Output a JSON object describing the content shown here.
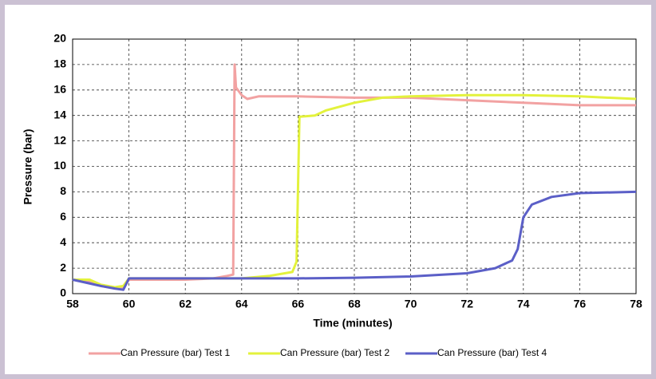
{
  "chart_data": {
    "type": "line",
    "xlabel": "Time (minutes)",
    "ylabel": "Pressure (bar)",
    "xlim": [
      58,
      78
    ],
    "xticks": [
      58,
      60,
      62,
      64,
      66,
      68,
      70,
      72,
      74,
      76,
      78
    ],
    "ylim": [
      0,
      20
    ],
    "yticks": [
      0,
      2,
      4,
      6,
      8,
      10,
      12,
      14,
      16,
      18,
      20
    ],
    "grid": true,
    "legend": "bottom",
    "series": [
      {
        "name": "Can Pressure (bar) Test 1",
        "color": "#f2a2a2",
        "x": [
          58,
          58.5,
          59,
          59.5,
          59.8,
          60,
          62,
          63,
          63.5,
          63.7,
          63.75,
          63.8,
          64,
          64.2,
          64.6,
          66,
          68,
          70,
          72,
          74,
          76,
          78
        ],
        "values": [
          1.1,
          1.0,
          0.6,
          0.4,
          0.4,
          1.1,
          1.1,
          1.2,
          1.4,
          1.5,
          18,
          16.2,
          15.6,
          15.3,
          15.5,
          15.5,
          15.4,
          15.4,
          15.2,
          15.0,
          14.8,
          14.8
        ]
      },
      {
        "name": "Can Pressure (bar) Test 2",
        "color": "#e3f23c",
        "x": [
          58,
          58.6,
          59,
          59.5,
          59.8,
          60,
          64,
          65,
          65.8,
          65.95,
          66.05,
          66.6,
          67,
          68,
          69,
          70,
          72,
          74,
          76,
          78
        ],
        "values": [
          1.1,
          1.1,
          0.7,
          0.5,
          0.6,
          1.2,
          1.2,
          1.4,
          1.7,
          2.5,
          13.9,
          14.0,
          14.4,
          15.0,
          15.4,
          15.5,
          15.6,
          15.6,
          15.5,
          15.3
        ]
      },
      {
        "name": "Can Pressure (bar) Test 4",
        "color": "#5b5fc7",
        "x": [
          58,
          59,
          59.5,
          59.8,
          60,
          64,
          66,
          68,
          70,
          72,
          73,
          73.6,
          73.8,
          74,
          74.3,
          75,
          76,
          78
        ],
        "values": [
          1.1,
          0.6,
          0.4,
          0.3,
          1.2,
          1.2,
          1.2,
          1.25,
          1.35,
          1.6,
          2.0,
          2.6,
          3.5,
          6.0,
          7.0,
          7.6,
          7.9,
          8.0
        ]
      }
    ]
  }
}
